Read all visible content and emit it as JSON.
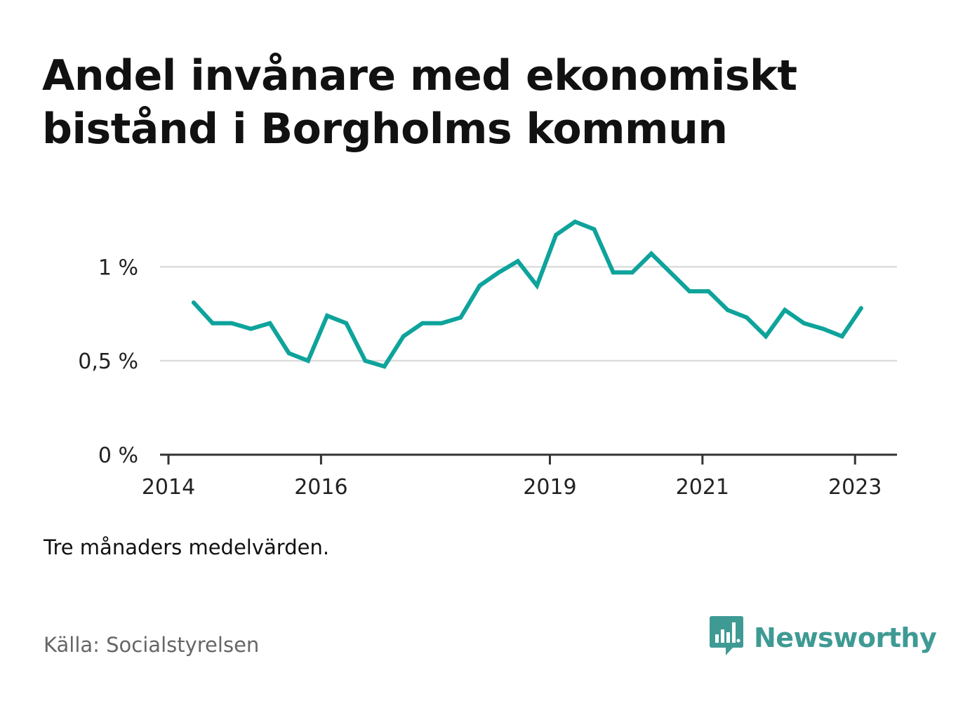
{
  "title": "Andel invånare med ekonomiskt bistånd i Borgholms kommun",
  "note": "Tre månaders medelvärden.",
  "source": "Källa: Socialstyrelsen",
  "brand": {
    "name": "Newsworthy",
    "icon": "newsworthy-logo-icon",
    "color": "#3f9a94"
  },
  "colors": {
    "line": "#0ea39b",
    "grid": "#dddddd",
    "axis": "#333333"
  },
  "chart_data": {
    "type": "line",
    "title": "Andel invånare med ekonomiskt bistånd i Borgholms kommun",
    "xlabel": "",
    "ylabel": "",
    "x_ticks": [
      {
        "value": 2014,
        "label": "2014"
      },
      {
        "value": 2016,
        "label": "2016"
      },
      {
        "value": 2019,
        "label": "2019"
      },
      {
        "value": 2021,
        "label": "2021"
      },
      {
        "value": 2023,
        "label": "2023"
      }
    ],
    "y_ticks": [
      {
        "value": 0,
        "label": "0 %"
      },
      {
        "value": 0.5,
        "label": "0,5 %"
      },
      {
        "value": 1,
        "label": "1 %"
      }
    ],
    "xlim": [
      2014,
      2023.55
    ],
    "ylim": [
      0,
      1.24
    ],
    "grid": true,
    "series": [
      {
        "color": "#0ea39b",
        "points": [
          {
            "x": 2014.33,
            "y": 0.81
          },
          {
            "x": 2014.58,
            "y": 0.7
          },
          {
            "x": 2014.83,
            "y": 0.7
          },
          {
            "x": 2015.08,
            "y": 0.67
          },
          {
            "x": 2015.33,
            "y": 0.7
          },
          {
            "x": 2015.58,
            "y": 0.54
          },
          {
            "x": 2015.83,
            "y": 0.5
          },
          {
            "x": 2016.08,
            "y": 0.74
          },
          {
            "x": 2016.33,
            "y": 0.7
          },
          {
            "x": 2016.58,
            "y": 0.5
          },
          {
            "x": 2016.83,
            "y": 0.47
          },
          {
            "x": 2017.08,
            "y": 0.63
          },
          {
            "x": 2017.33,
            "y": 0.7
          },
          {
            "x": 2017.58,
            "y": 0.7
          },
          {
            "x": 2017.83,
            "y": 0.73
          },
          {
            "x": 2018.08,
            "y": 0.9
          },
          {
            "x": 2018.33,
            "y": 0.97
          },
          {
            "x": 2018.58,
            "y": 1.03
          },
          {
            "x": 2018.83,
            "y": 0.9
          },
          {
            "x": 2019.08,
            "y": 1.17
          },
          {
            "x": 2019.33,
            "y": 1.24
          },
          {
            "x": 2019.58,
            "y": 1.2
          },
          {
            "x": 2019.83,
            "y": 0.97
          },
          {
            "x": 2020.08,
            "y": 0.97
          },
          {
            "x": 2020.33,
            "y": 1.07
          },
          {
            "x": 2020.58,
            "y": 0.97
          },
          {
            "x": 2020.83,
            "y": 0.87
          },
          {
            "x": 2021.08,
            "y": 0.87
          },
          {
            "x": 2021.33,
            "y": 0.77
          },
          {
            "x": 2021.58,
            "y": 0.73
          },
          {
            "x": 2021.83,
            "y": 0.63
          },
          {
            "x": 2022.08,
            "y": 0.77
          },
          {
            "x": 2022.33,
            "y": 0.7
          },
          {
            "x": 2022.58,
            "y": 0.67
          },
          {
            "x": 2022.83,
            "y": 0.63
          },
          {
            "x": 2023.08,
            "y": 0.78
          }
        ]
      }
    ]
  }
}
